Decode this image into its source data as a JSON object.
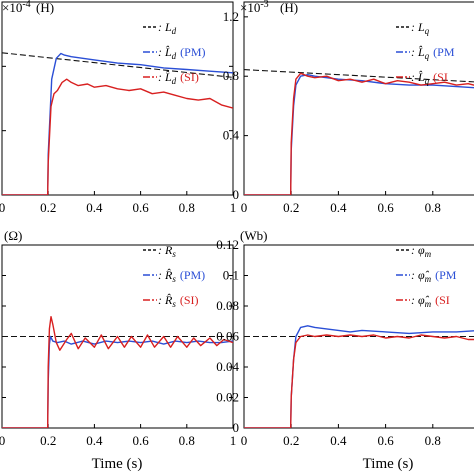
{
  "figure": {
    "xlabel": "Time (s)"
  },
  "chart_data": [
    {
      "type": "line",
      "unit": "(H)",
      "multiplier": "×10",
      "multiplier_exp": "-4",
      "xlim": [
        0,
        1
      ],
      "ylim": [
        0,
        1.2
      ],
      "x_ticks": [
        0,
        0.2,
        0.4,
        0.6,
        0.8,
        1
      ],
      "x_tick_labels": [
        "0",
        "0.2",
        "0.4",
        "0.6",
        "0.8",
        "1"
      ],
      "y_ticks": [
        0,
        0.4,
        0.8,
        1.2
      ],
      "y_tick_labels": [],
      "grid": false,
      "legend_position": "top-right",
      "series": [
        {
          "name": ": L_d",
          "label_main": ": L",
          "label_sub": "d",
          "label_paren": "",
          "color": "#111111",
          "dash": "6,3",
          "x": [
            0,
            1
          ],
          "y": [
            0.884,
            0.731
          ]
        },
        {
          "name": ": L̂_d (PM)",
          "label_main": ": L̂",
          "label_sub": "d",
          "label_paren": "(PM)",
          "color": "#2b4fd6",
          "dash": "10,3,2,3",
          "x": [
            0,
            0.198,
            0.2,
            0.215,
            0.235,
            0.255,
            0.27,
            0.3,
            0.35,
            0.4,
            0.5,
            0.6,
            0.7,
            0.8,
            0.9,
            1.0
          ],
          "y": [
            0,
            0,
            0.25,
            0.72,
            0.85,
            0.88,
            0.87,
            0.86,
            0.85,
            0.84,
            0.82,
            0.81,
            0.79,
            0.78,
            0.77,
            0.76
          ]
        },
        {
          "name": ": L̂_d (SI)",
          "label_main": ": L̂",
          "label_sub": "d",
          "label_paren": "(SI)",
          "color": "#d82020",
          "dash": "10,3,2,3",
          "x": [
            0,
            0.198,
            0.2,
            0.212,
            0.225,
            0.24,
            0.26,
            0.28,
            0.3,
            0.33,
            0.37,
            0.4,
            0.45,
            0.5,
            0.55,
            0.6,
            0.65,
            0.7,
            0.75,
            0.8,
            0.85,
            0.9,
            0.95,
            1.0
          ],
          "y": [
            0,
            0,
            0.2,
            0.55,
            0.63,
            0.65,
            0.7,
            0.72,
            0.7,
            0.68,
            0.69,
            0.67,
            0.68,
            0.66,
            0.65,
            0.66,
            0.63,
            0.64,
            0.62,
            0.6,
            0.59,
            0.6,
            0.56,
            0.54
          ]
        }
      ]
    },
    {
      "type": "line",
      "unit": "(H)",
      "multiplier": "×10",
      "multiplier_exp": "-3",
      "xlim": [
        0,
        1
      ],
      "ylim": [
        0,
        1.3
      ],
      "x_ticks": [
        0,
        0.2,
        0.4,
        0.6,
        0.8,
        1
      ],
      "x_tick_labels": [
        "0",
        "0.2",
        "0.4",
        "0.6",
        "0.8"
      ],
      "y_ticks": [
        0,
        0.4,
        0.8,
        1.2
      ],
      "y_tick_labels": [
        "0",
        "0.4",
        "0.8",
        "1.2"
      ],
      "grid": false,
      "legend_position": "top-right",
      "series": [
        {
          "name": ": L_q",
          "label_main": ": L",
          "label_sub": "q",
          "label_paren": "",
          "color": "#111111",
          "dash": "6,3",
          "x": [
            0,
            1
          ],
          "y": [
            0.845,
            0.76
          ]
        },
        {
          "name": ": L̂_q (PM)",
          "label_main": ": L̂",
          "label_sub": "q",
          "label_paren": "(PM",
          "color": "#2b4fd6",
          "dash": "10,3,2,3",
          "x": [
            0,
            0.198,
            0.2,
            0.21,
            0.22,
            0.24,
            0.27,
            0.3,
            0.4,
            0.5,
            0.6,
            0.7,
            0.8,
            0.9,
            1.0
          ],
          "y": [
            0,
            0,
            0.3,
            0.6,
            0.74,
            0.8,
            0.81,
            0.8,
            0.78,
            0.77,
            0.75,
            0.74,
            0.74,
            0.73,
            0.72
          ]
        },
        {
          "name": ": L̂_q (SI)",
          "label_main": ": L̂",
          "label_sub": "q",
          "label_paren": "(SI",
          "color": "#d82020",
          "dash": "10,3,2,3",
          "x": [
            0,
            0.198,
            0.2,
            0.21,
            0.22,
            0.24,
            0.27,
            0.3,
            0.35,
            0.4,
            0.45,
            0.5,
            0.55,
            0.6,
            0.65,
            0.7,
            0.75,
            0.8,
            0.85,
            0.9,
            0.95,
            1.0
          ],
          "y": [
            0,
            0,
            0.35,
            0.65,
            0.78,
            0.82,
            0.8,
            0.79,
            0.8,
            0.77,
            0.78,
            0.76,
            0.78,
            0.75,
            0.77,
            0.76,
            0.74,
            0.75,
            0.76,
            0.74,
            0.75,
            0.73
          ]
        }
      ]
    },
    {
      "type": "line",
      "unit": "(Ω)",
      "xlim": [
        0,
        1
      ],
      "ylim": [
        0,
        0.12
      ],
      "x_ticks": [
        0,
        0.2,
        0.4,
        0.6,
        0.8,
        1
      ],
      "x_tick_labels": [
        "0",
        "0.2",
        "0.4",
        "0.6",
        "0.8",
        "1"
      ],
      "y_ticks": [
        0,
        0.02,
        0.04,
        0.06,
        0.08,
        0.1,
        0.12
      ],
      "y_tick_labels": [],
      "grid": false,
      "legend_position": "top-right",
      "series": [
        {
          "name": ": R_s",
          "label_main": ": R",
          "label_sub": "s",
          "label_paren": "",
          "color": "#111111",
          "dash": "6,3",
          "x": [
            0,
            1
          ],
          "y": [
            0.06,
            0.06
          ]
        },
        {
          "name": ": R̂_s (PM)",
          "label_main": ": R̂",
          "label_sub": "s",
          "label_paren": "(PM)",
          "color": "#2b4fd6",
          "dash": "10,3,2,3",
          "x": [
            0,
            0.198,
            0.2,
            0.205,
            0.21,
            0.22,
            0.24,
            0.27,
            0.3,
            0.35,
            0.4,
            0.45,
            0.5,
            0.55,
            0.6,
            0.65,
            0.7,
            0.75,
            0.8,
            0.85,
            0.9,
            0.95,
            1.0
          ],
          "y": [
            0,
            0,
            0.03,
            0.055,
            0.06,
            0.057,
            0.056,
            0.057,
            0.055,
            0.057,
            0.055,
            0.057,
            0.056,
            0.057,
            0.056,
            0.057,
            0.055,
            0.057,
            0.056,
            0.057,
            0.056,
            0.056,
            0.057
          ]
        },
        {
          "name": ": R̂_s (SI)",
          "label_main": ": R̂",
          "label_sub": "s",
          "label_paren": "(SI)",
          "color": "#d82020",
          "dash": "10,3,2,3",
          "x": [
            0,
            0.198,
            0.2,
            0.205,
            0.212,
            0.22,
            0.235,
            0.25,
            0.28,
            0.3,
            0.33,
            0.36,
            0.4,
            0.43,
            0.46,
            0.5,
            0.53,
            0.56,
            0.6,
            0.63,
            0.66,
            0.7,
            0.73,
            0.76,
            0.8,
            0.83,
            0.86,
            0.9,
            0.93,
            0.96,
            1.0
          ],
          "y": [
            0,
            0,
            0.04,
            0.065,
            0.073,
            0.068,
            0.056,
            0.051,
            0.058,
            0.062,
            0.052,
            0.059,
            0.053,
            0.061,
            0.052,
            0.06,
            0.053,
            0.06,
            0.053,
            0.061,
            0.053,
            0.06,
            0.053,
            0.06,
            0.053,
            0.059,
            0.054,
            0.059,
            0.054,
            0.058,
            0.056
          ]
        }
      ]
    },
    {
      "type": "line",
      "unit": "(Wb)",
      "xlim": [
        0,
        1
      ],
      "ylim": [
        0,
        0.12
      ],
      "x_ticks": [
        0,
        0.2,
        0.4,
        0.6,
        0.8,
        1
      ],
      "x_tick_labels": [
        "0",
        "0.2",
        "0.4",
        "0.6",
        "0.8"
      ],
      "y_ticks": [
        0,
        0.02,
        0.04,
        0.06,
        0.08,
        0.1,
        0.12
      ],
      "y_tick_labels": [
        "0",
        "0.02",
        "0.04",
        "0.06",
        "0.08",
        "0.1",
        "0.12"
      ],
      "grid": false,
      "legend_position": "top-right",
      "series": [
        {
          "name": ": φ_m",
          "label_main": ": φ",
          "label_sub": "m",
          "label_paren": "",
          "color": "#111111",
          "dash": "6,3",
          "x": [
            0,
            1
          ],
          "y": [
            0.06,
            0.06
          ]
        },
        {
          "name": ": φ̂_m (PM)",
          "label_main": ": φ̂",
          "label_sub": "m",
          "label_paren": "(PM",
          "color": "#2b4fd6",
          "dash": "10,3,2,3",
          "x": [
            0,
            0.198,
            0.2,
            0.21,
            0.22,
            0.24,
            0.27,
            0.3,
            0.35,
            0.4,
            0.45,
            0.5,
            0.6,
            0.7,
            0.8,
            0.9,
            1.0
          ],
          "y": [
            0,
            0,
            0.02,
            0.045,
            0.06,
            0.066,
            0.067,
            0.066,
            0.065,
            0.064,
            0.063,
            0.064,
            0.063,
            0.062,
            0.063,
            0.063,
            0.064
          ]
        },
        {
          "name": ": φ̂_m (SI)",
          "label_main": ": φ̂",
          "label_sub": "m",
          "label_paren": "(SI",
          "color": "#d82020",
          "dash": "10,3,2,3",
          "x": [
            0,
            0.198,
            0.2,
            0.21,
            0.22,
            0.24,
            0.27,
            0.3,
            0.35,
            0.4,
            0.45,
            0.5,
            0.55,
            0.6,
            0.65,
            0.7,
            0.75,
            0.8,
            0.85,
            0.9,
            0.95,
            1.0
          ],
          "y": [
            0,
            0,
            0.02,
            0.045,
            0.056,
            0.06,
            0.061,
            0.06,
            0.061,
            0.06,
            0.061,
            0.06,
            0.061,
            0.059,
            0.06,
            0.059,
            0.061,
            0.06,
            0.059,
            0.06,
            0.058,
            0.058
          ]
        }
      ]
    }
  ]
}
